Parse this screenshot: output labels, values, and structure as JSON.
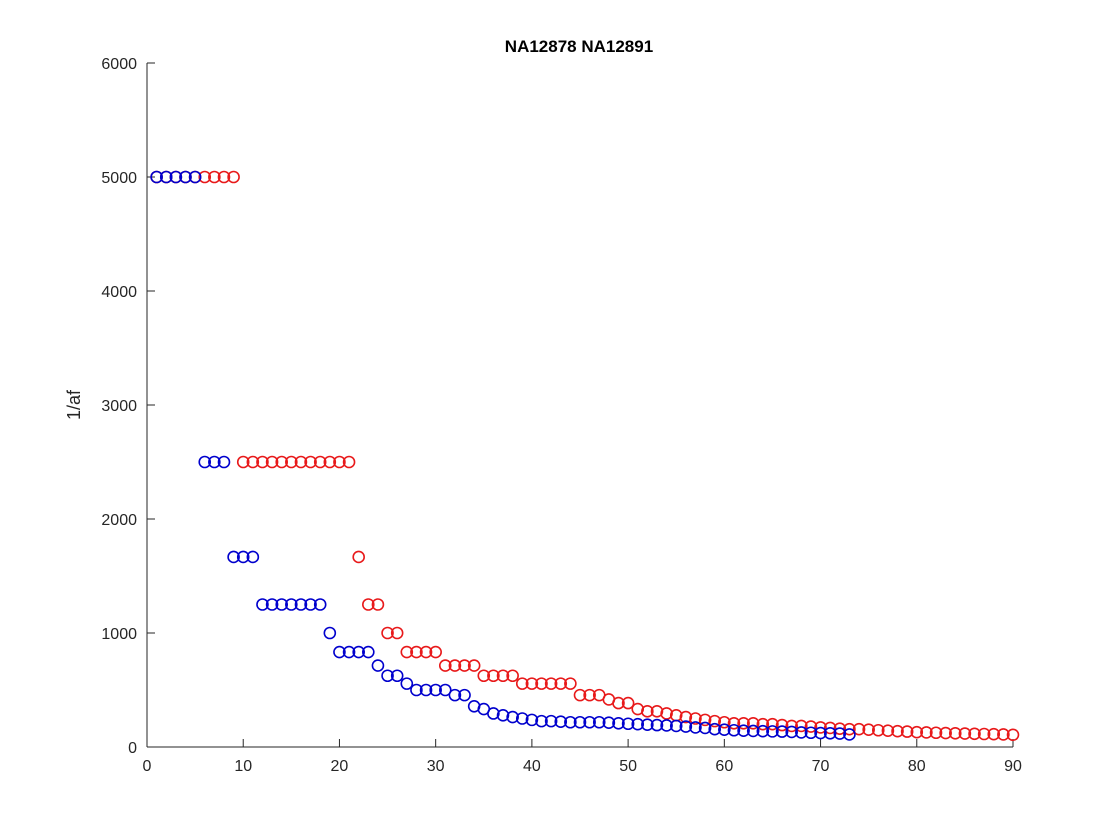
{
  "chart_data": {
    "type": "scatter",
    "title": "NA12878 NA12891",
    "xlabel": "",
    "ylabel": "1/af",
    "xlim": [
      0,
      90
    ],
    "ylim": [
      0,
      6000
    ],
    "x_ticks": [
      0,
      10,
      20,
      30,
      40,
      50,
      60,
      70,
      80,
      90
    ],
    "y_ticks": [
      0,
      1000,
      2000,
      3000,
      4000,
      5000,
      6000
    ],
    "grid": false,
    "legend": "none",
    "marker": "circle-open",
    "series": [
      {
        "color": "#e8191a",
        "x": [
          1,
          2,
          3,
          4,
          5,
          6,
          7,
          8,
          9,
          10,
          11,
          12,
          13,
          14,
          15,
          16,
          17,
          18,
          19,
          20,
          21,
          22,
          23,
          24,
          25,
          26,
          27,
          28,
          29,
          30,
          31,
          32,
          33,
          34,
          35,
          36,
          37,
          38,
          39,
          40,
          41,
          42,
          43,
          44,
          45,
          46,
          47,
          48,
          49,
          50,
          51,
          52,
          53,
          54,
          55,
          56,
          57,
          58,
          59,
          60,
          61,
          62,
          63,
          64,
          65,
          66,
          67,
          68,
          69,
          70,
          71,
          72,
          73,
          74,
          75,
          76,
          77,
          78,
          79,
          80,
          81,
          82,
          83,
          84,
          85,
          86,
          87,
          88,
          89,
          90
        ],
        "y": [
          5000,
          5000,
          5000,
          5000,
          5000,
          5000,
          5000,
          5000,
          5000,
          2500,
          2500,
          2500,
          2500,
          2500,
          2500,
          2500,
          2500,
          2500,
          2500,
          2500,
          2500,
          1667,
          1250,
          1250,
          1000,
          1000,
          833,
          833,
          833,
          833,
          714,
          714,
          714,
          714,
          625,
          625,
          625,
          625,
          556,
          556,
          556,
          556,
          556,
          556,
          455,
          455,
          455,
          417,
          385,
          385,
          333,
          313,
          313,
          294,
          278,
          263,
          250,
          238,
          227,
          217,
          208,
          208,
          208,
          200,
          200,
          192,
          185,
          185,
          179,
          172,
          167,
          161,
          156,
          156,
          152,
          147,
          143,
          139,
          135,
          130,
          128,
          125,
          122,
          120,
          118,
          116,
          114,
          112,
          110,
          107
        ]
      },
      {
        "color": "#0000cd",
        "x": [
          1,
          2,
          3,
          4,
          5,
          6,
          7,
          8,
          9,
          10,
          11,
          12,
          13,
          14,
          15,
          16,
          17,
          18,
          19,
          20,
          21,
          22,
          23,
          24,
          25,
          26,
          27,
          28,
          29,
          30,
          31,
          32,
          33,
          34,
          35,
          36,
          37,
          38,
          39,
          40,
          41,
          42,
          43,
          44,
          45,
          46,
          47,
          48,
          49,
          50,
          51,
          52,
          53,
          54,
          55,
          56,
          57,
          58,
          59,
          60,
          61,
          62,
          63,
          64,
          65,
          66,
          67,
          68,
          69,
          70,
          71,
          72,
          73
        ],
        "y": [
          5000,
          5000,
          5000,
          5000,
          5000,
          2500,
          2500,
          2500,
          1667,
          1667,
          1667,
          1250,
          1250,
          1250,
          1250,
          1250,
          1250,
          1250,
          1000,
          833,
          833,
          833,
          833,
          714,
          625,
          625,
          556,
          500,
          500,
          500,
          500,
          455,
          455,
          357,
          333,
          294,
          278,
          263,
          250,
          238,
          227,
          227,
          222,
          217,
          217,
          217,
          217,
          213,
          208,
          204,
          200,
          196,
          192,
          189,
          185,
          179,
          172,
          167,
          156,
          152,
          147,
          143,
          141,
          139,
          137,
          135,
          132,
          128,
          125,
          122,
          120,
          118,
          110
        ]
      }
    ]
  }
}
